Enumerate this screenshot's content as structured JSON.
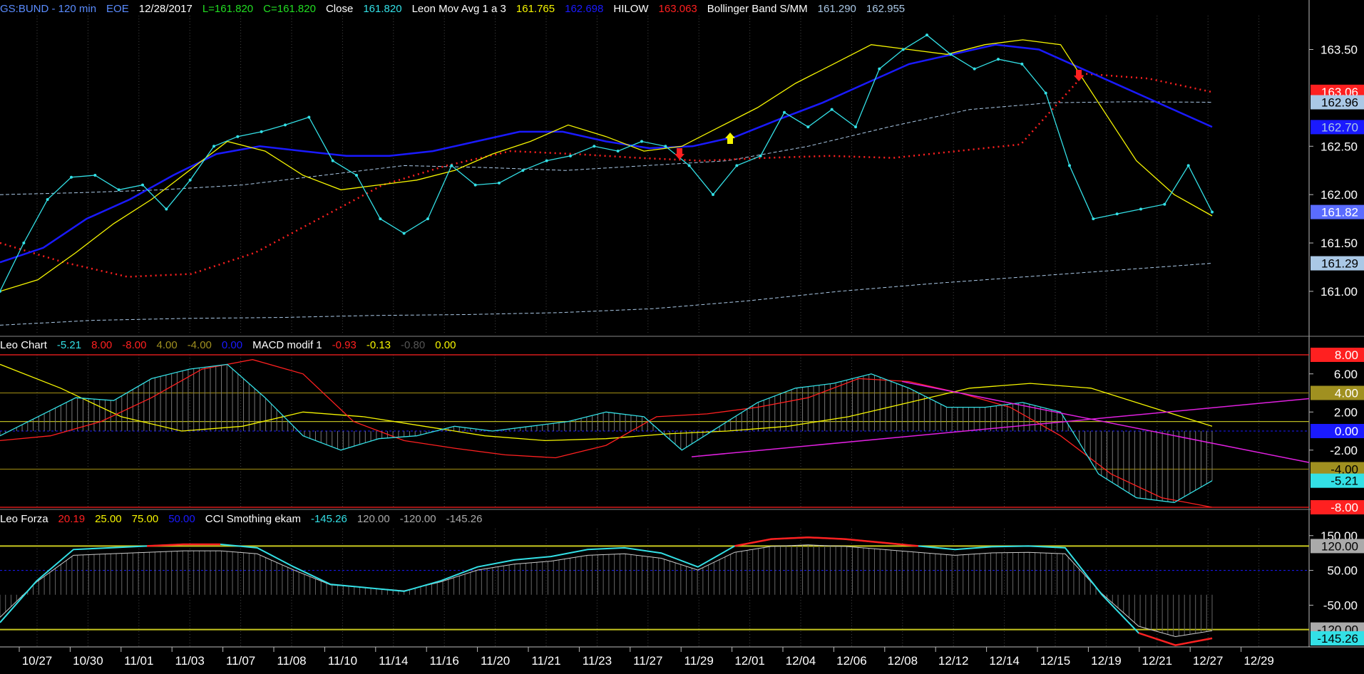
{
  "colors": {
    "bg": "#000000",
    "grid": "#555555",
    "cyan": "#33e0e6",
    "red": "#ff2020",
    "green": "#22dd22",
    "yellow": "#f5f500",
    "blue": "#1a1aff",
    "white": "#dddddd",
    "magenta": "#e020e0",
    "olive": "#b8b820"
  },
  "header_main": [
    {
      "t": "GS:BUND - 120 min",
      "c": "#5a8cff"
    },
    {
      "t": "EOE",
      "c": "#5a8cff"
    },
    {
      "t": "12/28/2017",
      "c": "#ffffff"
    },
    {
      "t": "L=161.820",
      "c": "#22dd22"
    },
    {
      "t": "C=161.820",
      "c": "#22dd22"
    },
    {
      "t": "Close",
      "c": "#ffffff"
    },
    {
      "t": "161.820",
      "c": "#33e0e6"
    },
    {
      "t": "Leon Mov Avg 1 a 3",
      "c": "#ffffff"
    },
    {
      "t": "161.765",
      "c": "#f5f500"
    },
    {
      "t": "162.698",
      "c": "#1a1aff"
    },
    {
      "t": "HILOW",
      "c": "#ffffff"
    },
    {
      "t": "163.063",
      "c": "#ff2020"
    },
    {
      "t": "Bollinger Band S/MM",
      "c": "#ffffff"
    },
    {
      "t": "161.290",
      "c": "#aac8e6"
    },
    {
      "t": "162.955",
      "c": "#aac8e6"
    }
  ],
  "header_macd": [
    {
      "t": "Leo Chart",
      "c": "#ffffff"
    },
    {
      "t": "-5.21",
      "c": "#33e0e6"
    },
    {
      "t": "8.00",
      "c": "#ff2020"
    },
    {
      "t": "-8.00",
      "c": "#ff2020"
    },
    {
      "t": "4.00",
      "c": "#a09020"
    },
    {
      "t": "-4.00",
      "c": "#a09020"
    },
    {
      "t": "0.00",
      "c": "#1a1aff"
    },
    {
      "t": "MACD modif 1",
      "c": "#ffffff"
    },
    {
      "t": "-0.93",
      "c": "#ff2020"
    },
    {
      "t": "-0.13",
      "c": "#f5f500"
    },
    {
      "t": "-0.80",
      "c": "#555555"
    },
    {
      "t": "0.00",
      "c": "#f5f500"
    }
  ],
  "header_cci": [
    {
      "t": "Leo Forza",
      "c": "#ffffff"
    },
    {
      "t": "20.19",
      "c": "#ff2020"
    },
    {
      "t": "25.00",
      "c": "#f5f500"
    },
    {
      "t": "75.00",
      "c": "#f5f500"
    },
    {
      "t": "50.00",
      "c": "#1a1aff"
    },
    {
      "t": "CCI Smothing ekam",
      "c": "#ffffff"
    },
    {
      "t": "-145.26",
      "c": "#33e0e6"
    },
    {
      "t": "120.00",
      "c": "#aaaaaa"
    },
    {
      "t": "-120.00",
      "c": "#aaaaaa"
    },
    {
      "t": "-145.26",
      "c": "#aaaaaa"
    }
  ],
  "x_labels": [
    "10/27",
    "10/30",
    "11/01",
    "11/03",
    "11/07",
    "11/08",
    "11/10",
    "11/14",
    "11/16",
    "11/20",
    "11/21",
    "11/23",
    "11/27",
    "11/29",
    "12/01",
    "12/04",
    "12/06",
    "12/08",
    "12/12",
    "12/14",
    "12/15",
    "12/19",
    "12/21",
    "12/27",
    "12/29"
  ],
  "chart_data": [
    {
      "type": "line",
      "title": "GS:BUND - 120 min",
      "ylim": [
        160.55,
        163.85
      ],
      "yticks": [
        161.0,
        161.5,
        162.0,
        162.5,
        163.5
      ],
      "price_tags": [
        {
          "t": "163.06",
          "v": 163.063,
          "bg": "#ff2020",
          "fg": "#ffffff"
        },
        {
          "t": "162.96",
          "v": 162.955,
          "bg": "#aac8e6",
          "fg": "#000000"
        },
        {
          "t": "162.70",
          "v": 162.698,
          "bg": "#1a1aff",
          "fg": "#aac8e6"
        },
        {
          "t": "161.82",
          "v": 161.82,
          "bg": "#5a6cff",
          "fg": "#ffffff"
        },
        {
          "t": "161.29",
          "v": 161.29,
          "bg": "#aac8e6",
          "fg": "#000000"
        }
      ],
      "series": [
        {
          "name": "Close",
          "values": [
            161.0,
            161.5,
            161.95,
            162.18,
            162.2,
            162.05,
            162.1,
            161.85,
            162.15,
            162.5,
            162.6,
            162.65,
            162.72,
            162.8,
            162.35,
            162.2,
            161.75,
            161.6,
            161.75,
            162.3,
            162.1,
            162.12,
            162.25,
            162.35,
            162.4,
            162.5,
            162.45,
            162.55,
            162.5,
            162.3,
            162.0,
            162.3,
            162.4,
            162.85,
            162.7,
            162.88,
            162.7,
            163.3,
            163.5,
            163.65,
            163.45,
            163.3,
            163.4,
            163.35,
            163.05,
            162.3,
            161.75,
            161.8,
            161.85,
            161.9,
            162.3,
            161.82
          ],
          "color": "#33e0e6"
        },
        {
          "name": "Leon Mov Avg 1",
          "values": [
            161.0,
            161.12,
            161.4,
            161.7,
            161.95,
            162.25,
            162.55,
            162.45,
            162.2,
            162.05,
            162.1,
            162.15,
            162.25,
            162.42,
            162.55,
            162.72,
            162.6,
            162.45,
            162.5,
            162.7,
            162.9,
            163.15,
            163.35,
            163.55,
            163.5,
            163.45,
            163.55,
            163.6,
            163.55,
            162.95,
            162.35,
            162.0,
            161.78
          ],
          "color": "#f5f500"
        },
        {
          "name": "Leon Mov Avg 3",
          "values": [
            161.3,
            161.45,
            161.75,
            161.95,
            162.2,
            162.42,
            162.5,
            162.45,
            162.4,
            162.4,
            162.45,
            162.55,
            162.65,
            162.65,
            162.55,
            162.48,
            162.5,
            162.6,
            162.78,
            162.95,
            163.15,
            163.35,
            163.45,
            163.55,
            163.5,
            163.3,
            163.1,
            162.9,
            162.7
          ],
          "color": "#1a1aff"
        },
        {
          "name": "HILOW",
          "values": [
            161.5,
            161.3,
            161.15,
            161.18,
            161.4,
            161.75,
            162.1,
            162.3,
            162.45,
            162.42,
            162.38,
            162.35,
            162.38,
            162.4,
            162.38,
            162.45,
            162.52,
            163.25,
            163.2,
            163.06
          ],
          "color": "#ff2020"
        },
        {
          "name": "Bollinger Band S/MM upper",
          "values": [
            162.0,
            162.02,
            162.05,
            162.1,
            162.2,
            162.3,
            162.28,
            162.25,
            162.3,
            162.35,
            162.5,
            162.7,
            162.88,
            162.95,
            162.96,
            162.955
          ],
          "color": "#aac8e6"
        },
        {
          "name": "Bollinger Band S/MM lower",
          "values": [
            160.65,
            160.7,
            160.72,
            160.73,
            160.75,
            160.76,
            160.78,
            160.82,
            160.9,
            161.0,
            161.08,
            161.15,
            161.22,
            161.29
          ],
          "color": "#aac8e6"
        }
      ]
    },
    {
      "type": "line",
      "title": "Leo Chart",
      "ylim": [
        -8.0,
        8.0
      ],
      "yticks": [
        6.0,
        2.0,
        -2.0
      ],
      "price_tags": [
        {
          "t": "8.00",
          "v": 8.0,
          "bg": "#ff2020",
          "fg": "#ffffff"
        },
        {
          "t": "4.00",
          "v": 4.0,
          "bg": "#a09020",
          "fg": "#ffffff"
        },
        {
          "t": "0.00",
          "v": 0.0,
          "bg": "#1a1aff",
          "fg": "#ffffff"
        },
        {
          "t": "-4.00",
          "v": -4.0,
          "bg": "#a09020",
          "fg": "#000000"
        },
        {
          "t": "-5.21",
          "v": -5.21,
          "bg": "#33e0e6",
          "fg": "#000000"
        },
        {
          "t": "-8.00",
          "v": -8.0,
          "bg": "#ff2020",
          "fg": "#ffffff"
        }
      ],
      "series": [
        {
          "name": "MACD modif 1",
          "values": [
            -0.5,
            1.5,
            3.5,
            3.2,
            5.5,
            6.5,
            7.0,
            3.5,
            -0.5,
            -2.0,
            -0.8,
            -0.5,
            0.5,
            0.0,
            0.5,
            1.0,
            2.0,
            1.5,
            -2.0,
            0.5,
            3.0,
            4.5,
            5.0,
            6.0,
            4.5,
            2.5,
            2.5,
            3.0,
            2.0,
            -4.5,
            -7.0,
            -7.5,
            -5.21
          ],
          "color": "#33e0e6"
        },
        {
          "name": "",
          "values": [
            -1.0,
            -0.5,
            1.0,
            3.5,
            6.5,
            7.5,
            6.0,
            1.0,
            -1.0,
            -1.8,
            -2.5,
            -2.8,
            -1.5,
            1.5,
            1.8,
            2.5,
            3.5,
            5.5,
            5.2,
            4.0,
            2.5,
            -0.5,
            -4.5,
            -7.0,
            -8.0
          ],
          "color": "#ff2020"
        },
        {
          "name": "",
          "values": [
            7.0,
            4.5,
            1.5,
            0.0,
            0.5,
            2.0,
            1.5,
            0.5,
            -0.5,
            -1.0,
            -0.8,
            -0.3,
            0.0,
            0.5,
            1.5,
            3.0,
            4.5,
            5.0,
            4.5,
            2.5,
            0.5
          ],
          "color": "#f5f500"
        }
      ]
    },
    {
      "type": "line",
      "title": "Leo Forza",
      "ylim": [
        -170,
        170
      ],
      "yticks": [
        150,
        50,
        -50
      ],
      "price_tags": [
        {
          "t": "120.00",
          "v": 120,
          "bg": "#aaaaaa",
          "fg": "#000000"
        },
        {
          "t": "-120.00",
          "v": -120,
          "bg": "#aaaaaa",
          "fg": "#000000"
        },
        {
          "t": "-145.26",
          "v": -145.26,
          "bg": "#33e0e6",
          "fg": "#000000"
        }
      ],
      "series": [
        {
          "name": "CCI Smothing ekam",
          "values": [
            -100,
            20,
            110,
            115,
            120,
            125,
            125,
            115,
            60,
            10,
            0,
            -10,
            20,
            60,
            80,
            90,
            110,
            115,
            100,
            60,
            120,
            140,
            145,
            140,
            130,
            120,
            110,
            118,
            120,
            115,
            -20,
            -130,
            -165,
            -145.26
          ],
          "color": "#33e0e6"
        }
      ]
    }
  ]
}
